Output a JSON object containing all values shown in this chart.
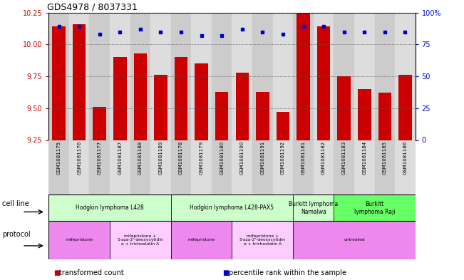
{
  "title": "GDS4978 / 8037331",
  "samples": [
    "GSM1081175",
    "GSM1081176",
    "GSM1081177",
    "GSM1081187",
    "GSM1081188",
    "GSM1081189",
    "GSM1081178",
    "GSM1081179",
    "GSM1081180",
    "GSM1081190",
    "GSM1081191",
    "GSM1081192",
    "GSM1081181",
    "GSM1081182",
    "GSM1081183",
    "GSM1081184",
    "GSM1081185",
    "GSM1081186"
  ],
  "bar_values": [
    10.14,
    10.16,
    9.51,
    9.9,
    9.93,
    9.76,
    9.9,
    9.85,
    9.63,
    9.78,
    9.63,
    9.47,
    10.25,
    10.14,
    9.75,
    9.65,
    9.62,
    9.76
  ],
  "dot_values": [
    89,
    89,
    83,
    85,
    87,
    85,
    85,
    82,
    82,
    87,
    85,
    83,
    89,
    89,
    85,
    85,
    85,
    85
  ],
  "ymin": 9.25,
  "ymax": 10.25,
  "yticks": [
    9.25,
    9.5,
    9.75,
    10.0,
    10.25
  ],
  "y2ticks": [
    0,
    25,
    50,
    75,
    100
  ],
  "y2labels": [
    "0",
    "25",
    "50",
    "75",
    "100%"
  ],
  "bar_color": "#cc0000",
  "dot_color": "#0000cc",
  "bar_width": 0.65,
  "cell_line_groups": [
    {
      "label": "Hodgkin lymphoma L428",
      "start": 0,
      "end": 5,
      "color": "#ccffcc"
    },
    {
      "label": "Hodgkin lymphoma L428-PAX5",
      "start": 6,
      "end": 11,
      "color": "#ccffcc"
    },
    {
      "label": "Burkitt lymphoma\nNamalwa",
      "start": 12,
      "end": 13,
      "color": "#ccffcc"
    },
    {
      "label": "Burkitt\nlymphoma Raji",
      "start": 14,
      "end": 17,
      "color": "#66ff66"
    }
  ],
  "protocol_groups": [
    {
      "label": "mifepristone",
      "start": 0,
      "end": 2,
      "color": "#ee88ee"
    },
    {
      "label": "mifepristone +\n5-aza-2'-deoxycytidin\ne + trichostatin A",
      "start": 3,
      "end": 5,
      "color": "#ffccff"
    },
    {
      "label": "mifepristone",
      "start": 6,
      "end": 8,
      "color": "#ee88ee"
    },
    {
      "label": "mifepristone +\n5-aza-2'-deoxycytidin\ne + trichostatin A",
      "start": 9,
      "end": 11,
      "color": "#ffccff"
    },
    {
      "label": "untreated",
      "start": 12,
      "end": 17,
      "color": "#ee88ee"
    }
  ],
  "legend_items": [
    {
      "label": "transformed count",
      "color": "#cc0000"
    },
    {
      "label": "percentile rank within the sample",
      "color": "#0000cc"
    }
  ],
  "cell_line_label": "cell line",
  "protocol_label": "protocol",
  "grid_color": "#555555",
  "tick_label_color_left": "#cc0000",
  "tick_label_color_right": "#0000cc",
  "sample_bg_colors": [
    "#cccccc",
    "#dddddd"
  ]
}
